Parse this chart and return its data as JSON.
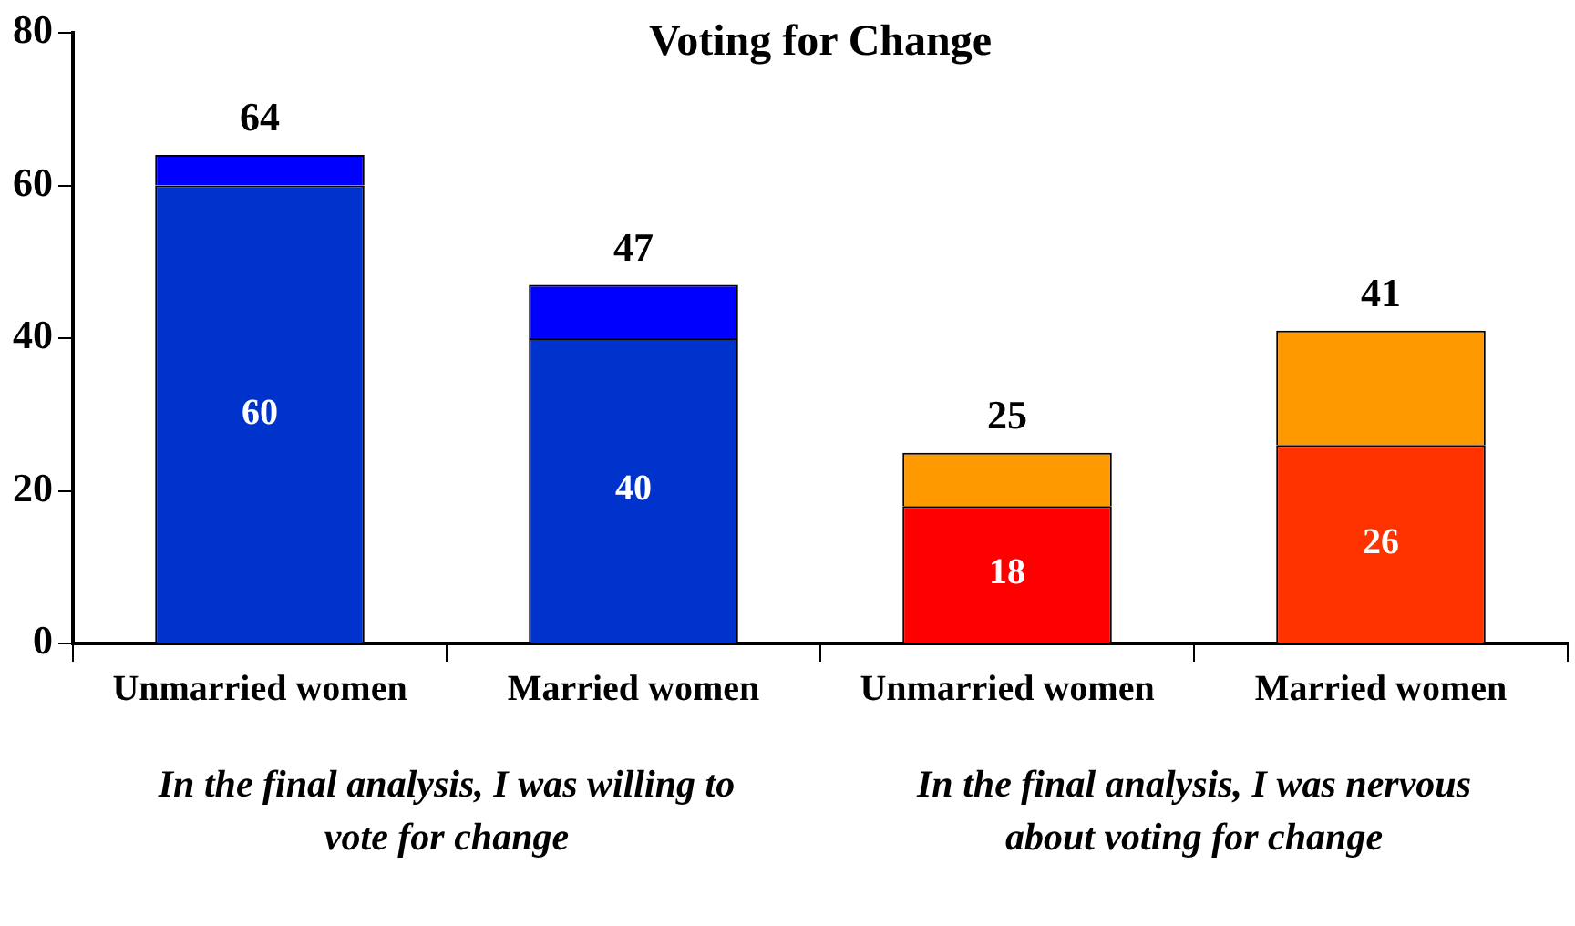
{
  "chart_data": {
    "type": "bar",
    "title": "Voting for Change",
    "categories": [
      "Unmarried women",
      "Married women",
      "Unmarried women",
      "Married women"
    ],
    "stacked": true,
    "series": [
      {
        "colors": [
          "#0033cc",
          "#0033cc",
          "#ff0000",
          "#ff3300"
        ],
        "values": [
          60,
          40,
          18,
          26
        ],
        "value_labels": [
          "60",
          "40",
          "18",
          "26"
        ]
      },
      {
        "colors": [
          "#0000ff",
          "#0000ff",
          "#ff9900",
          "#ff9900"
        ],
        "values": [
          4,
          7,
          7,
          15
        ]
      }
    ],
    "totals": [
      "64",
      "47",
      "25",
      "41"
    ],
    "ylim": [
      0,
      80
    ],
    "yticks": [
      0,
      20,
      40,
      60,
      80
    ],
    "grid": false,
    "legend": false,
    "annotations": [
      "In the final analysis, I was willing to vote for change",
      "In the final analysis, I was nervous about voting  for change"
    ]
  }
}
